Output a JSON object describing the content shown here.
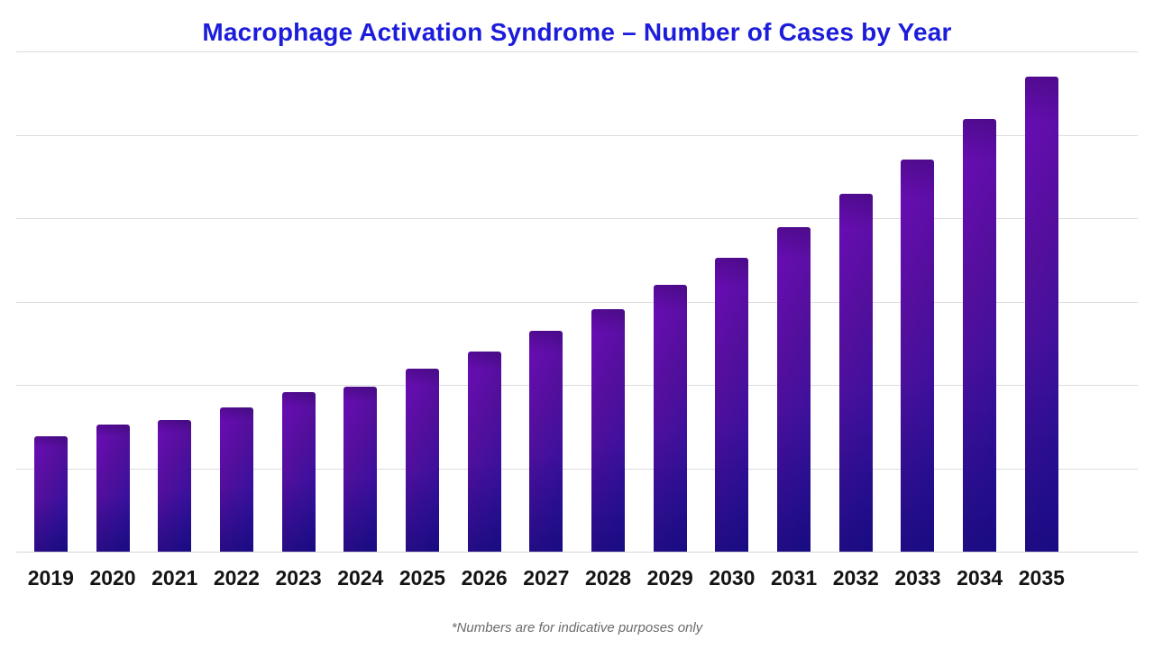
{
  "title": {
    "text": "Macrophage Activation Syndrome – Number of Cases by Year",
    "color": "#1c1cdb"
  },
  "footnote": {
    "text": "*Numbers are for indicative purposes only",
    "color": "#6b6b6b"
  },
  "chart_data": {
    "type": "bar",
    "title": "Macrophage Activation Syndrome – Number of Cases by Year",
    "categories": [
      "2019",
      "2020",
      "2021",
      "2022",
      "2023",
      "2024",
      "2025",
      "2026",
      "2027",
      "2028",
      "2029",
      "2030",
      "2031",
      "2032",
      "2033",
      "2034",
      "2035"
    ],
    "values": [
      138,
      152,
      158,
      173,
      191,
      198,
      219,
      240,
      265,
      291,
      320,
      352,
      389,
      429,
      470,
      519,
      570
    ],
    "xlabel": "",
    "ylabel": "",
    "ylim": [
      0,
      600
    ],
    "y_axis_tick_labels_visible": false,
    "value_units": "relative (axis unlabeled; one gridline interval = 100)",
    "grid": {
      "visible": true,
      "horizontal_lines": 7,
      "color": "#dcdcdc"
    },
    "legend_position": "none",
    "bar_colors": {
      "gradient_from": "#6d0cb8",
      "gradient_mid": "#32119c",
      "gradient_to": "#22109a"
    },
    "x_tick_label_color": "#141414",
    "background_color": "#ffffff"
  }
}
